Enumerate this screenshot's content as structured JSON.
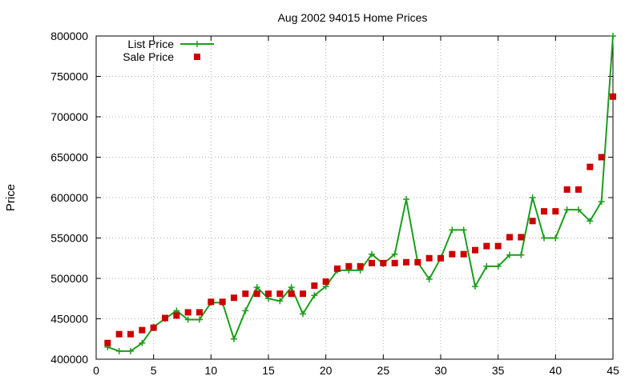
{
  "chart_data": {
    "type": "line",
    "title": "Aug 2002 94015 Home Prices",
    "xlabel": "",
    "ylabel": "Price",
    "xlim": [
      0,
      45
    ],
    "ylim": [
      400000,
      800000
    ],
    "x_ticks": [
      0,
      5,
      10,
      15,
      20,
      25,
      30,
      35,
      40,
      45
    ],
    "y_ticks": [
      400000,
      450000,
      500000,
      550000,
      600000,
      650000,
      700000,
      750000,
      800000
    ],
    "grid": true,
    "legend": "top-left",
    "series": [
      {
        "name": "List Price",
        "style": "linespoints",
        "color": "#1a9e1a",
        "marker": "plus",
        "x": [
          1,
          2,
          3,
          4,
          5,
          6,
          7,
          8,
          9,
          10,
          11,
          12,
          13,
          14,
          15,
          16,
          17,
          18,
          19,
          20,
          21,
          22,
          23,
          24,
          25,
          26,
          27,
          28,
          29,
          30,
          31,
          32,
          33,
          34,
          35,
          36,
          37,
          38,
          39,
          40,
          41,
          42,
          43,
          44,
          45
        ],
        "values": [
          415000,
          410000,
          410000,
          420000,
          440000,
          450000,
          460000,
          449000,
          449000,
          470000,
          470000,
          425000,
          460000,
          489000,
          475000,
          472000,
          489000,
          456000,
          479000,
          490000,
          510000,
          510000,
          510000,
          530000,
          518000,
          530000,
          598000,
          520000,
          499000,
          525000,
          560000,
          560000,
          490000,
          515000,
          515000,
          529000,
          529000,
          600000,
          550000,
          550000,
          585000,
          585000,
          571000,
          595000,
          800000
        ]
      },
      {
        "name": "Sale Price",
        "style": "points",
        "color": "#cc0000",
        "marker": "square",
        "x": [
          1,
          2,
          3,
          4,
          5,
          6,
          7,
          8,
          9,
          10,
          11,
          12,
          13,
          14,
          15,
          16,
          17,
          18,
          19,
          20,
          21,
          22,
          23,
          24,
          25,
          26,
          27,
          28,
          29,
          30,
          31,
          32,
          33,
          34,
          35,
          36,
          37,
          38,
          39,
          40,
          41,
          42,
          43,
          44,
          45
        ],
        "values": [
          420000,
          431000,
          431000,
          436000,
          439000,
          451000,
          454000,
          458000,
          458000,
          471000,
          471000,
          476000,
          481000,
          481000,
          481000,
          481000,
          481000,
          481000,
          491000,
          496000,
          512000,
          515000,
          515000,
          519000,
          519000,
          519000,
          520000,
          520000,
          525000,
          525000,
          530000,
          530000,
          535000,
          540000,
          540000,
          551000,
          551000,
          571000,
          583000,
          583000,
          610000,
          610000,
          638000,
          650000,
          725000
        ]
      }
    ]
  }
}
